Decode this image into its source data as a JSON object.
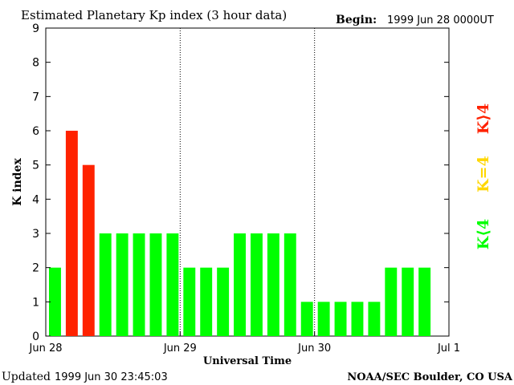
{
  "chart_data": {
    "type": "bar",
    "title": "Estimated Planetary Kp index (3 hour data)",
    "begin_label": "Begin:",
    "begin_value": "1999 Jun 28 0000UT",
    "ylabel": "K index",
    "xlabel": "Universal Time",
    "ylim": [
      0,
      9
    ],
    "yticks": [
      "0",
      "1",
      "2",
      "3",
      "4",
      "5",
      "6",
      "7",
      "8",
      "9"
    ],
    "day_labels": [
      "Jun 28",
      "Jun 29",
      "Jun 30",
      "Jul 1"
    ],
    "values": [
      2,
      6,
      5,
      3,
      3,
      3,
      3,
      3,
      2,
      2,
      2,
      3,
      3,
      3,
      3,
      1,
      1,
      1,
      1,
      1,
      2,
      2,
      2
    ],
    "legend": {
      "low": {
        "label": "K⟨4",
        "color": "#00ff00"
      },
      "mid": {
        "label": "K=4",
        "color": "#ffd700"
      },
      "high": {
        "label": "K⟩4",
        "color": "#ff2200"
      }
    },
    "colors": {
      "low": "#00ff00",
      "mid": "#ffd700",
      "high": "#ff2200"
    }
  },
  "footer": {
    "updated_label": "Updated",
    "updated_value": "1999 Jun 30 23:45:03",
    "credit": "NOAA/SEC Boulder, CO USA"
  }
}
